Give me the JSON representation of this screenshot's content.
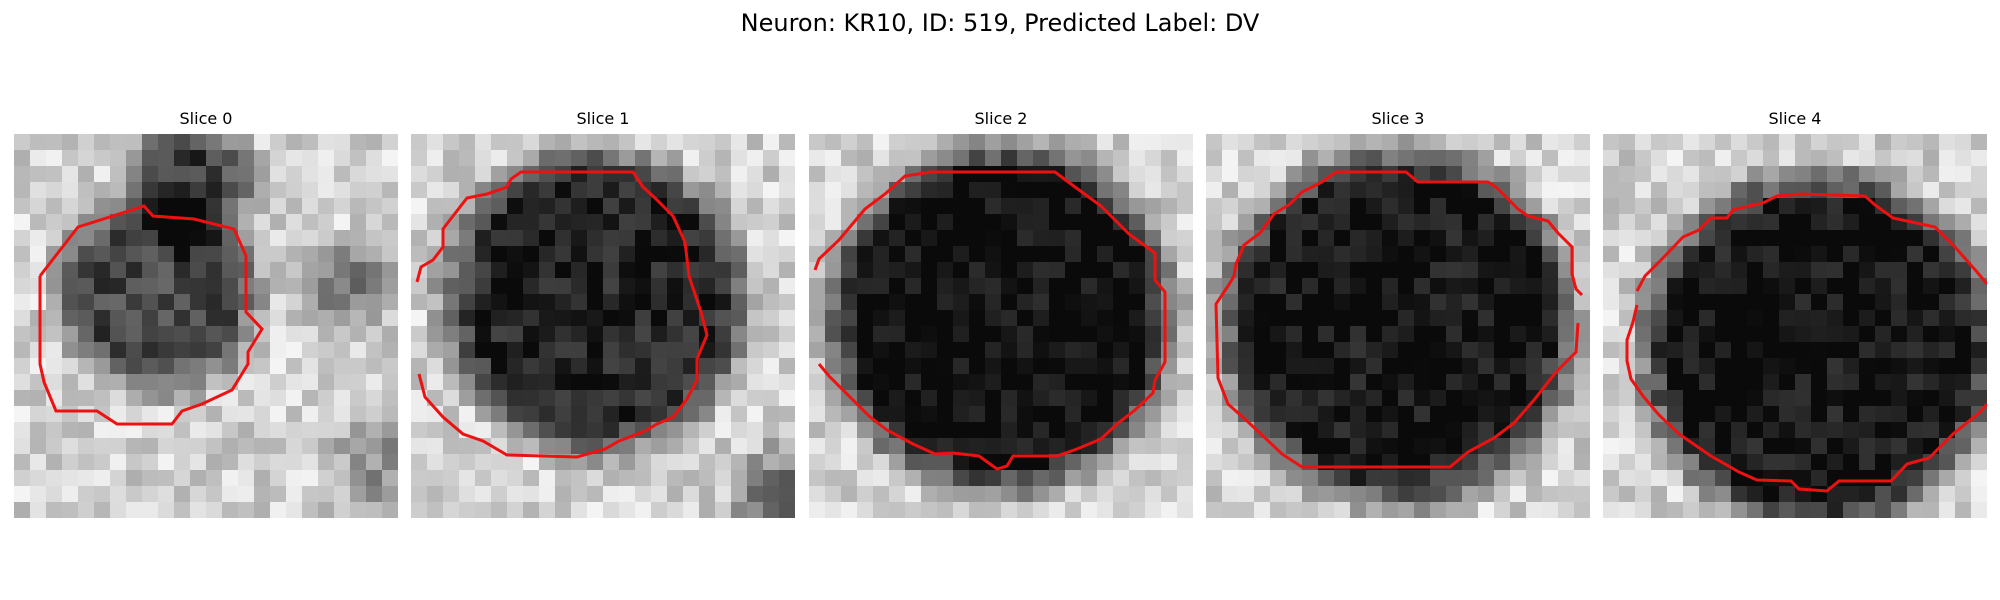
{
  "figure": {
    "title": "Neuron: KR10, ID: 519, Predicted Label: DV"
  },
  "panels": [
    {
      "title": "Slice 0"
    },
    {
      "title": "Slice 1"
    },
    {
      "title": "Slice 2"
    },
    {
      "title": "Slice 3"
    },
    {
      "title": "Slice 4"
    }
  ],
  "contour_color": "#ee1111"
}
